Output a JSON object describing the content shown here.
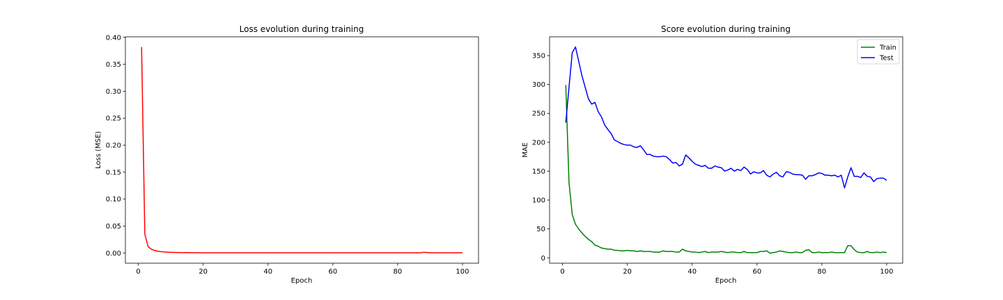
{
  "chart_data": [
    {
      "type": "line",
      "title": "Loss evolution during training",
      "xlabel": "Epoch",
      "ylabel": "Loss (MSE)",
      "xlim": [
        -4,
        104.95
      ],
      "ylim": [
        -0.019,
        0.401
      ],
      "xticks": [
        0,
        20,
        40,
        60,
        80,
        100
      ],
      "yticks": [
        0.0,
        0.05,
        0.1,
        0.15,
        0.2,
        0.25,
        0.3,
        0.35,
        0.4
      ],
      "ytick_labels": [
        "0.00",
        "0.05",
        "0.10",
        "0.15",
        "0.20",
        "0.25",
        "0.30",
        "0.35",
        "0.40"
      ],
      "grid": false,
      "legend": null,
      "series": [
        {
          "color": "#ff0000",
          "x": [
            1,
            2,
            3,
            4,
            5,
            6,
            7,
            8,
            9,
            10,
            11,
            12,
            13,
            14,
            15,
            16,
            17,
            18,
            19,
            20,
            21,
            22,
            23,
            24,
            25,
            26,
            27,
            28,
            29,
            30,
            31,
            32,
            33,
            34,
            35,
            36,
            37,
            38,
            39,
            40,
            41,
            42,
            43,
            44,
            45,
            46,
            47,
            48,
            49,
            50,
            51,
            52,
            53,
            54,
            55,
            56,
            57,
            58,
            59,
            60,
            61,
            62,
            63,
            64,
            65,
            66,
            67,
            68,
            69,
            70,
            71,
            72,
            73,
            74,
            75,
            76,
            77,
            78,
            79,
            80,
            81,
            82,
            83,
            84,
            85,
            86,
            87,
            88,
            89,
            90,
            91,
            92,
            93,
            94,
            95,
            96,
            97,
            98,
            99,
            100
          ],
          "values": [
            0.382,
            0.035,
            0.012,
            0.007,
            0.0045,
            0.0032,
            0.0024,
            0.0018,
            0.0014,
            0.0011,
            0.0009,
            0.0008,
            0.0007,
            0.0006,
            0.0006,
            0.0005,
            0.0005,
            0.0005,
            0.0004,
            0.0004,
            0.0004,
            0.0004,
            0.0004,
            0.0004,
            0.0004,
            0.0003,
            0.0003,
            0.0003,
            0.0003,
            0.0003,
            0.0003,
            0.0003,
            0.0003,
            0.0003,
            0.0003,
            0.0003,
            0.0003,
            0.0003,
            0.0003,
            0.0003,
            0.0003,
            0.0003,
            0.0003,
            0.0003,
            0.0003,
            0.0003,
            0.0003,
            0.0003,
            0.0003,
            0.0003,
            0.0003,
            0.0003,
            0.0003,
            0.0003,
            0.0003,
            0.0003,
            0.0003,
            0.0003,
            0.0003,
            0.0003,
            0.0003,
            0.0003,
            0.0003,
            0.0003,
            0.0003,
            0.0003,
            0.0003,
            0.0003,
            0.0003,
            0.0003,
            0.0003,
            0.0003,
            0.0003,
            0.0003,
            0.0003,
            0.0003,
            0.0003,
            0.0003,
            0.0003,
            0.0003,
            0.0003,
            0.0003,
            0.0003,
            0.0003,
            0.0003,
            0.0003,
            0.0003,
            0.0012,
            0.0008,
            0.0003,
            0.0003,
            0.0003,
            0.0003,
            0.0003,
            0.0003,
            0.0003,
            0.0003,
            0.0003,
            0.0003,
            0.0003
          ]
        }
      ]
    },
    {
      "type": "line",
      "title": "Score evolution during training",
      "xlabel": "Epoch",
      "ylabel": "MAE",
      "xlim": [
        -4,
        104.95
      ],
      "ylim": [
        -9.3,
        382.5
      ],
      "xticks": [
        0,
        20,
        40,
        60,
        80,
        100
      ],
      "yticks": [
        0,
        50,
        100,
        150,
        200,
        250,
        300,
        350
      ],
      "ytick_labels": [
        "0",
        "50",
        "100",
        "150",
        "200",
        "250",
        "300",
        "350"
      ],
      "grid": false,
      "legend": "top-right",
      "series": [
        {
          "name": "Train",
          "color": "#008000",
          "x": [
            1,
            2,
            3,
            4,
            5,
            6,
            7,
            8,
            9,
            10,
            11,
            12,
            13,
            14,
            15,
            16,
            17,
            18,
            19,
            20,
            21,
            22,
            23,
            24,
            25,
            26,
            27,
            28,
            29,
            30,
            31,
            32,
            33,
            34,
            35,
            36,
            37,
            38,
            39,
            40,
            41,
            42,
            43,
            44,
            45,
            46,
            47,
            48,
            49,
            50,
            51,
            52,
            53,
            54,
            55,
            56,
            57,
            58,
            59,
            60,
            61,
            62,
            63,
            64,
            65,
            66,
            67,
            68,
            69,
            70,
            71,
            72,
            73,
            74,
            75,
            76,
            77,
            78,
            79,
            80,
            81,
            82,
            83,
            84,
            85,
            86,
            87,
            88,
            89,
            90,
            91,
            92,
            93,
            94,
            95,
            96,
            97,
            98,
            99,
            100
          ],
          "values": [
            299,
            130,
            75,
            58,
            50,
            43,
            37,
            32,
            28,
            22,
            20,
            17,
            16,
            15,
            15,
            13,
            13,
            12,
            12,
            13,
            12,
            12,
            11,
            12,
            11,
            11,
            11,
            10,
            10,
            10,
            12,
            11,
            11,
            11,
            10,
            10,
            15,
            12,
            11,
            10,
            10,
            9,
            10,
            11,
            9,
            10,
            10,
            10,
            11,
            10,
            9,
            10,
            10,
            9,
            9,
            11,
            9,
            9,
            9,
            9,
            11,
            11,
            12,
            8,
            9,
            10,
            12,
            11,
            10,
            9,
            9,
            10,
            9,
            9,
            13,
            14,
            9,
            9,
            10,
            9,
            9,
            9,
            10,
            9,
            9,
            9,
            9,
            21,
            21,
            14,
            10,
            9,
            9,
            11,
            9,
            9,
            10,
            9,
            10,
            9
          ]
        },
        {
          "name": "Test",
          "color": "#0000ff",
          "x": [
            1,
            2,
            3,
            4,
            5,
            6,
            7,
            8,
            9,
            10,
            11,
            12,
            13,
            14,
            15,
            16,
            17,
            18,
            19,
            20,
            21,
            22,
            23,
            24,
            25,
            26,
            27,
            28,
            29,
            30,
            31,
            32,
            33,
            34,
            35,
            36,
            37,
            38,
            39,
            40,
            41,
            42,
            43,
            44,
            45,
            46,
            47,
            48,
            49,
            50,
            51,
            52,
            53,
            54,
            55,
            56,
            57,
            58,
            59,
            60,
            61,
            62,
            63,
            64,
            65,
            66,
            67,
            68,
            69,
            70,
            71,
            72,
            73,
            74,
            75,
            76,
            77,
            78,
            79,
            80,
            81,
            82,
            83,
            84,
            85,
            86,
            87,
            88,
            89,
            90,
            91,
            92,
            93,
            94,
            95,
            96,
            97,
            98,
            99,
            100
          ],
          "values": [
            234,
            295,
            355,
            365,
            340,
            315,
            295,
            275,
            266,
            269,
            253,
            244,
            230,
            222,
            215,
            204,
            201,
            198,
            196,
            195,
            195,
            192,
            191,
            194,
            187,
            179,
            179,
            176,
            175,
            175,
            176,
            175,
            170,
            164,
            165,
            159,
            162,
            178,
            173,
            167,
            162,
            160,
            158,
            160,
            155,
            155,
            159,
            157,
            156,
            150,
            152,
            155,
            150,
            153,
            151,
            157,
            153,
            145,
            149,
            147,
            147,
            151,
            143,
            140,
            145,
            148,
            142,
            140,
            149,
            148,
            145,
            144,
            144,
            143,
            136,
            142,
            142,
            144,
            147,
            146,
            143,
            143,
            142,
            143,
            140,
            143,
            121,
            140,
            156,
            141,
            141,
            139,
            147,
            141,
            140,
            132,
            137,
            138,
            138,
            134
          ]
        }
      ]
    }
  ]
}
